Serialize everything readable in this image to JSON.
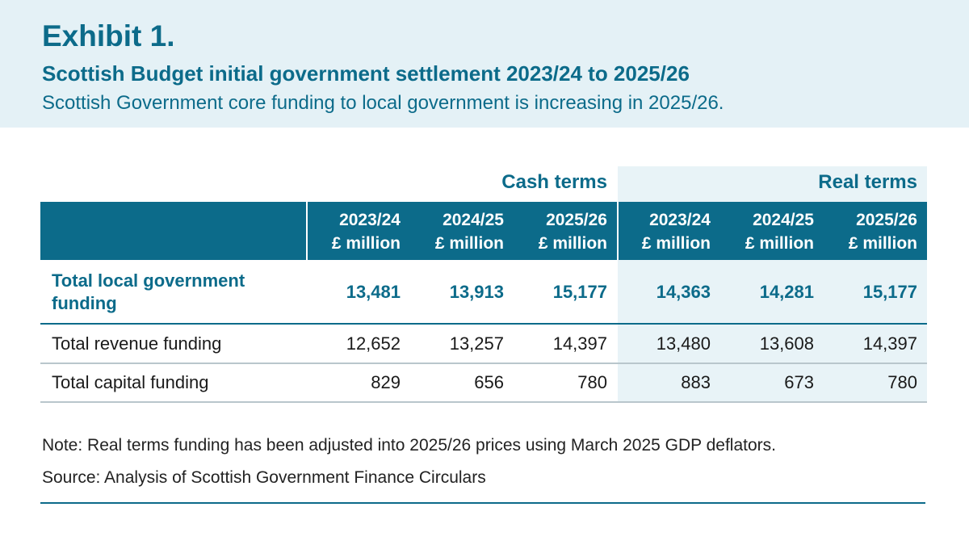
{
  "header": {
    "exhibit_label": "Exhibit 1.",
    "title": "Scottish Budget initial government settlement 2023/24 to 2025/26",
    "subtitle": "Scottish Government core funding to local government is increasing in 2025/26."
  },
  "table": {
    "groups": [
      "Cash terms",
      "Real terms"
    ],
    "columns": [
      {
        "year": "2023/24",
        "unit": "£ million"
      },
      {
        "year": "2024/25",
        "unit": "£ million"
      },
      {
        "year": "2025/26",
        "unit": "£ million"
      },
      {
        "year": "2023/24",
        "unit": "£ million"
      },
      {
        "year": "2024/25",
        "unit": "£ million"
      },
      {
        "year": "2025/26",
        "unit": "£ million"
      }
    ],
    "rows": [
      {
        "label_line1": "Total local government",
        "label_line2": "funding",
        "values": [
          "13,481",
          "13,913",
          "15,177",
          "14,363",
          "14,281",
          "15,177"
        ]
      },
      {
        "label": "Total revenue funding",
        "values": [
          "12,652",
          "13,257",
          "14,397",
          "13,480",
          "13,608",
          "14,397"
        ]
      },
      {
        "label": "Total capital funding",
        "values": [
          "829",
          "656",
          "780",
          "883",
          "673",
          "780"
        ]
      }
    ]
  },
  "note": "Note: Real terms funding has been adjusted into 2025/26 prices using March 2025 GDP deflators.",
  "source": "Source: Analysis of Scottish Government Finance Circulars",
  "colors": {
    "accent": "#0c6b8a",
    "header_bg": "#e4f1f6",
    "real_terms_bg": "#e8f3f7"
  }
}
